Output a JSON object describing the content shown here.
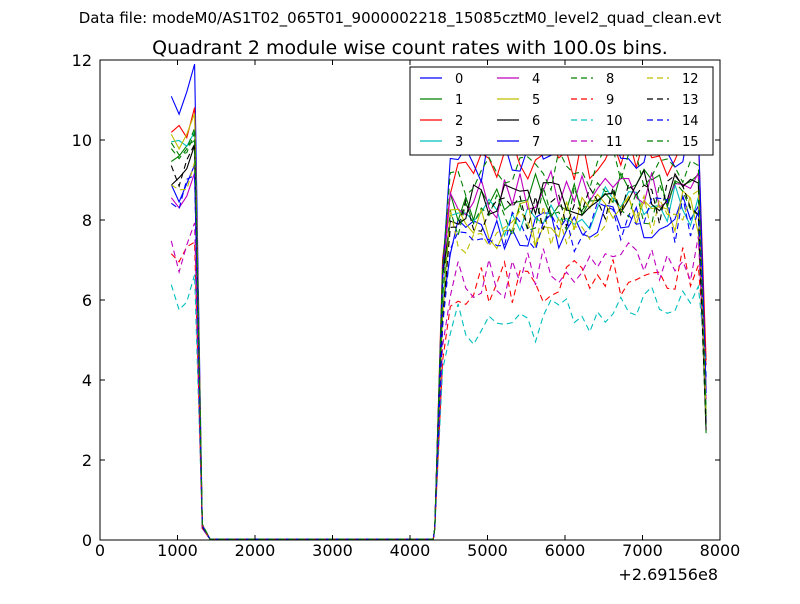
{
  "header": {
    "data_file": "Data file: modeM0/AS1T02_065T01_9000002218_15085cztM0_level2_quad_clean.evt"
  },
  "chart_data": {
    "type": "line",
    "title": "Quadrant 2 module wise count rates with 100.0s bins.",
    "xlabel": "",
    "ylabel": "",
    "x_offset_label": "+2.69156e8",
    "xlim": [
      0,
      8000
    ],
    "ylim": [
      0,
      12
    ],
    "xticks": [
      0,
      1000,
      2000,
      3000,
      4000,
      5000,
      6000,
      7000,
      8000
    ],
    "yticks": [
      0,
      2,
      4,
      6,
      8,
      10,
      12
    ],
    "grid": false,
    "legend_position": "top-right",
    "legend_columns": 4,
    "series_colors": [
      "#0000ff",
      "#008000",
      "#ff0000",
      "#00bfbf",
      "#bf00bf",
      "#bfbf00",
      "#000000",
      "#0000ff",
      "#008000",
      "#ff0000",
      "#00bfbf",
      "#bf00bf",
      "#bfbf00",
      "#000000",
      "#0000ff",
      "#008000"
    ],
    "series": [
      {
        "name": "0",
        "style": "solid"
      },
      {
        "name": "1",
        "style": "solid"
      },
      {
        "name": "2",
        "style": "solid"
      },
      {
        "name": "3",
        "style": "solid"
      },
      {
        "name": "4",
        "style": "solid"
      },
      {
        "name": "5",
        "style": "solid"
      },
      {
        "name": "6",
        "style": "solid"
      },
      {
        "name": "7",
        "style": "solid"
      },
      {
        "name": "8",
        "style": "dashed"
      },
      {
        "name": "9",
        "style": "dashed"
      },
      {
        "name": "10",
        "style": "dashed"
      },
      {
        "name": "11",
        "style": "dashed"
      },
      {
        "name": "12",
        "style": "dashed"
      },
      {
        "name": "13",
        "style": "dashed"
      },
      {
        "name": "14",
        "style": "dashed"
      },
      {
        "name": "15",
        "style": "dashed"
      }
    ],
    "time_grid": {
      "first_segment": [
        920,
        1020,
        1120,
        1220,
        1320,
        1420
      ],
      "gap_points": [
        1520,
        2500,
        3500,
        4300
      ],
      "second_segment_start": 4320,
      "second_segment_step": 100,
      "second_segment_count": 36
    },
    "levels": {
      "first_segment": [
        11.0,
        9.5,
        10.2,
        9.9,
        8.8,
        10.1,
        9.0,
        8.7,
        9.5,
        7.1,
        6.2,
        7.2,
        8.7,
        9.3,
        8.6,
        9.7
      ],
      "second_segment": [
        7.5,
        8.4,
        9.2,
        7.9,
        8.4,
        7.7,
        8.3,
        9.4,
        8.0,
        6.3,
        5.3,
        6.5,
        7.7,
        8.0,
        7.5,
        8.9
      ]
    }
  }
}
